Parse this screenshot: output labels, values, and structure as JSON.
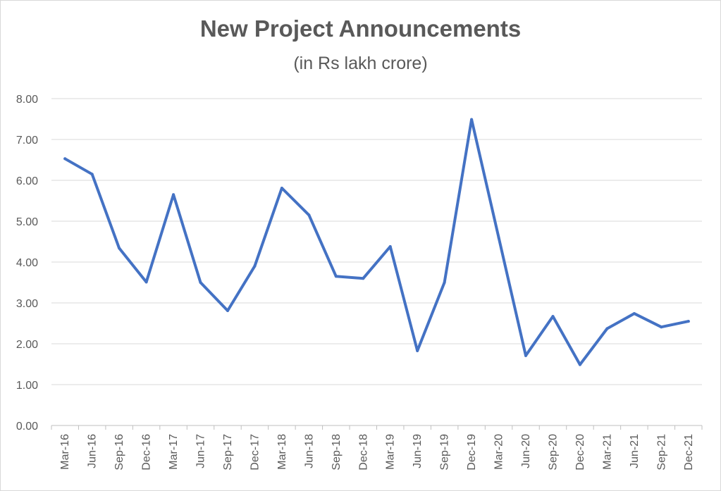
{
  "chart_data": {
    "type": "line",
    "title": "New Project Announcements",
    "subtitle": "(in Rs lakh crore)",
    "xlabel": "",
    "ylabel": "",
    "ylim": [
      0,
      8
    ],
    "yticks": [
      "0.00",
      "1.00",
      "2.00",
      "3.00",
      "4.00",
      "5.00",
      "6.00",
      "7.00",
      "8.00"
    ],
    "grid": true,
    "categories": [
      "Mar-16",
      "Jun-16",
      "Sep-16",
      "Dec-16",
      "Mar-17",
      "Jun-17",
      "Sep-17",
      "Dec-17",
      "Mar-18",
      "Jun-18",
      "Sep-18",
      "Dec-18",
      "Mar-19",
      "Jun-19",
      "Sep-19",
      "Dec-19",
      "Mar-20",
      "Jun-20",
      "Sep-20",
      "Dec-20",
      "Mar-21",
      "Jun-21",
      "Sep-21",
      "Dec-21"
    ],
    "series": [
      {
        "color": "#4472c4",
        "values": [
          6.53,
          6.15,
          4.34,
          3.51,
          5.65,
          3.5,
          2.81,
          3.9,
          5.81,
          5.15,
          3.65,
          3.6,
          4.38,
          1.83,
          3.5,
          7.49,
          4.6,
          1.71,
          2.67,
          1.49,
          2.37,
          2.74,
          2.41,
          2.55
        ]
      }
    ]
  }
}
